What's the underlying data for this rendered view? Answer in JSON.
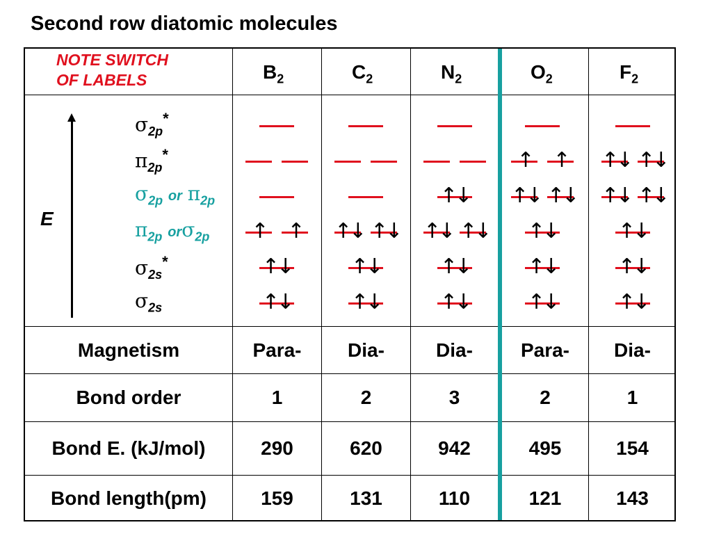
{
  "title": "Second row diatomic molecules",
  "note": [
    "NOTE SWITCH",
    "OF LABELS"
  ],
  "energy_label": "E",
  "molecules": [
    {
      "base": "B",
      "sub": "2"
    },
    {
      "base": "C",
      "sub": "2"
    },
    {
      "base": "N",
      "sub": "2"
    },
    {
      "base": "O",
      "sub": "2"
    },
    {
      "base": "F",
      "sub": "2"
    }
  ],
  "levels": [
    {
      "sym": "σ",
      "sub": "2p",
      "sup": "*"
    },
    {
      "sym": "π",
      "sub": "2p",
      "sup": "*"
    },
    {
      "sym": "σ",
      "sub": "2p",
      "or": "or",
      "sym2": "π",
      "sub2": "2p",
      "color": "#17a0a0"
    },
    {
      "sym": "π",
      "sub": "2p",
      "or": "or",
      "sym2": "σ",
      "sub2": "2p",
      "color": "#17a0a0"
    },
    {
      "sym": "σ",
      "sub": "2s",
      "sup": "*"
    },
    {
      "sym": "σ",
      "sub": "2s"
    }
  ],
  "electron_filling": {
    "B2": [
      [
        ""
      ],
      [
        "",
        ""
      ],
      [
        ""
      ],
      [
        "↑",
        "↑"
      ],
      [
        "↑↓"
      ],
      [
        "↑↓"
      ]
    ],
    "C2": [
      [
        ""
      ],
      [
        "",
        ""
      ],
      [
        ""
      ],
      [
        "↑↓",
        "↑↓"
      ],
      [
        "↑↓"
      ],
      [
        "↑↓"
      ]
    ],
    "N2": [
      [
        ""
      ],
      [
        "",
        ""
      ],
      [
        "↑↓"
      ],
      [
        "↑↓",
        "↑↓"
      ],
      [
        "↑↓"
      ],
      [
        "↑↓"
      ]
    ],
    "O2": [
      [
        ""
      ],
      [
        "↑",
        "↑"
      ],
      [
        "↑↓",
        "↑↓"
      ],
      [
        "↑↓"
      ],
      [
        "↑↓"
      ],
      [
        "↑↓"
      ]
    ],
    "F2": [
      [
        ""
      ],
      [
        "↑↓",
        "↑↓"
      ],
      [
        "↑↓",
        "↑↓"
      ],
      [
        "↑↓"
      ],
      [
        "↑↓"
      ],
      [
        "↑↓"
      ]
    ]
  },
  "properties": [
    {
      "label": "Magnetism",
      "values": [
        "Para-",
        "Dia-",
        "Dia-",
        "Para-",
        "Dia-"
      ]
    },
    {
      "label": "Bond order",
      "values": [
        "1",
        "2",
        "3",
        "2",
        "1"
      ]
    },
    {
      "label": "Bond E. (kJ/mol)",
      "values": [
        "290",
        "620",
        "942",
        "495",
        "154"
      ]
    },
    {
      "label": "Bond length(pm)",
      "values": [
        "159",
        "131",
        "110",
        "121",
        "143"
      ]
    }
  ],
  "colors": {
    "orbital_line": "#e0101e",
    "note": "#e0101e",
    "accent": "#17a0a0"
  }
}
